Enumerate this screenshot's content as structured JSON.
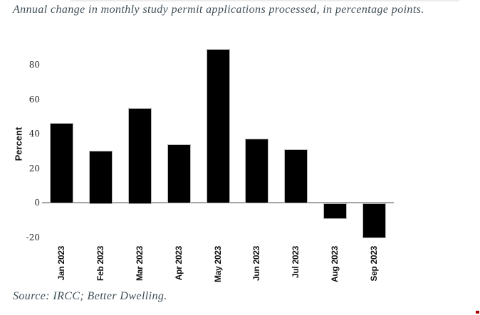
{
  "page": {
    "background": "#ffffff",
    "top_divider_color": "#ebebeb"
  },
  "source_note": "Source: IRCC; Better Dwelling.",
  "artifact": {
    "color": "#aa0000"
  },
  "chart_data": {
    "type": "bar",
    "title": "Annual change in monthly study permit applications processed, in percentage points.",
    "xlabel": "",
    "ylabel": "Percent",
    "categories": [
      "Jan 2023",
      "Feb 2023",
      "Mar 2023",
      "Apr 2023",
      "May 2023",
      "Jun 2023",
      "Jul 2023",
      "Aug 2023",
      "Sep 2023"
    ],
    "values": [
      46,
      30,
      55,
      34,
      89,
      37,
      31,
      -9,
      -20
    ],
    "yticks": [
      80,
      60,
      40,
      20,
      0,
      -20
    ],
    "ylim": [
      -25,
      93
    ],
    "grid": false,
    "legend": false,
    "bar_color": "#000000",
    "bar_edge_color": "#b8b8b8",
    "zero_line_color": "#a6a6a6",
    "ytick_label_color": "#262626",
    "xtick_label_color": "#111111",
    "title_color": "#3f4e57"
  }
}
